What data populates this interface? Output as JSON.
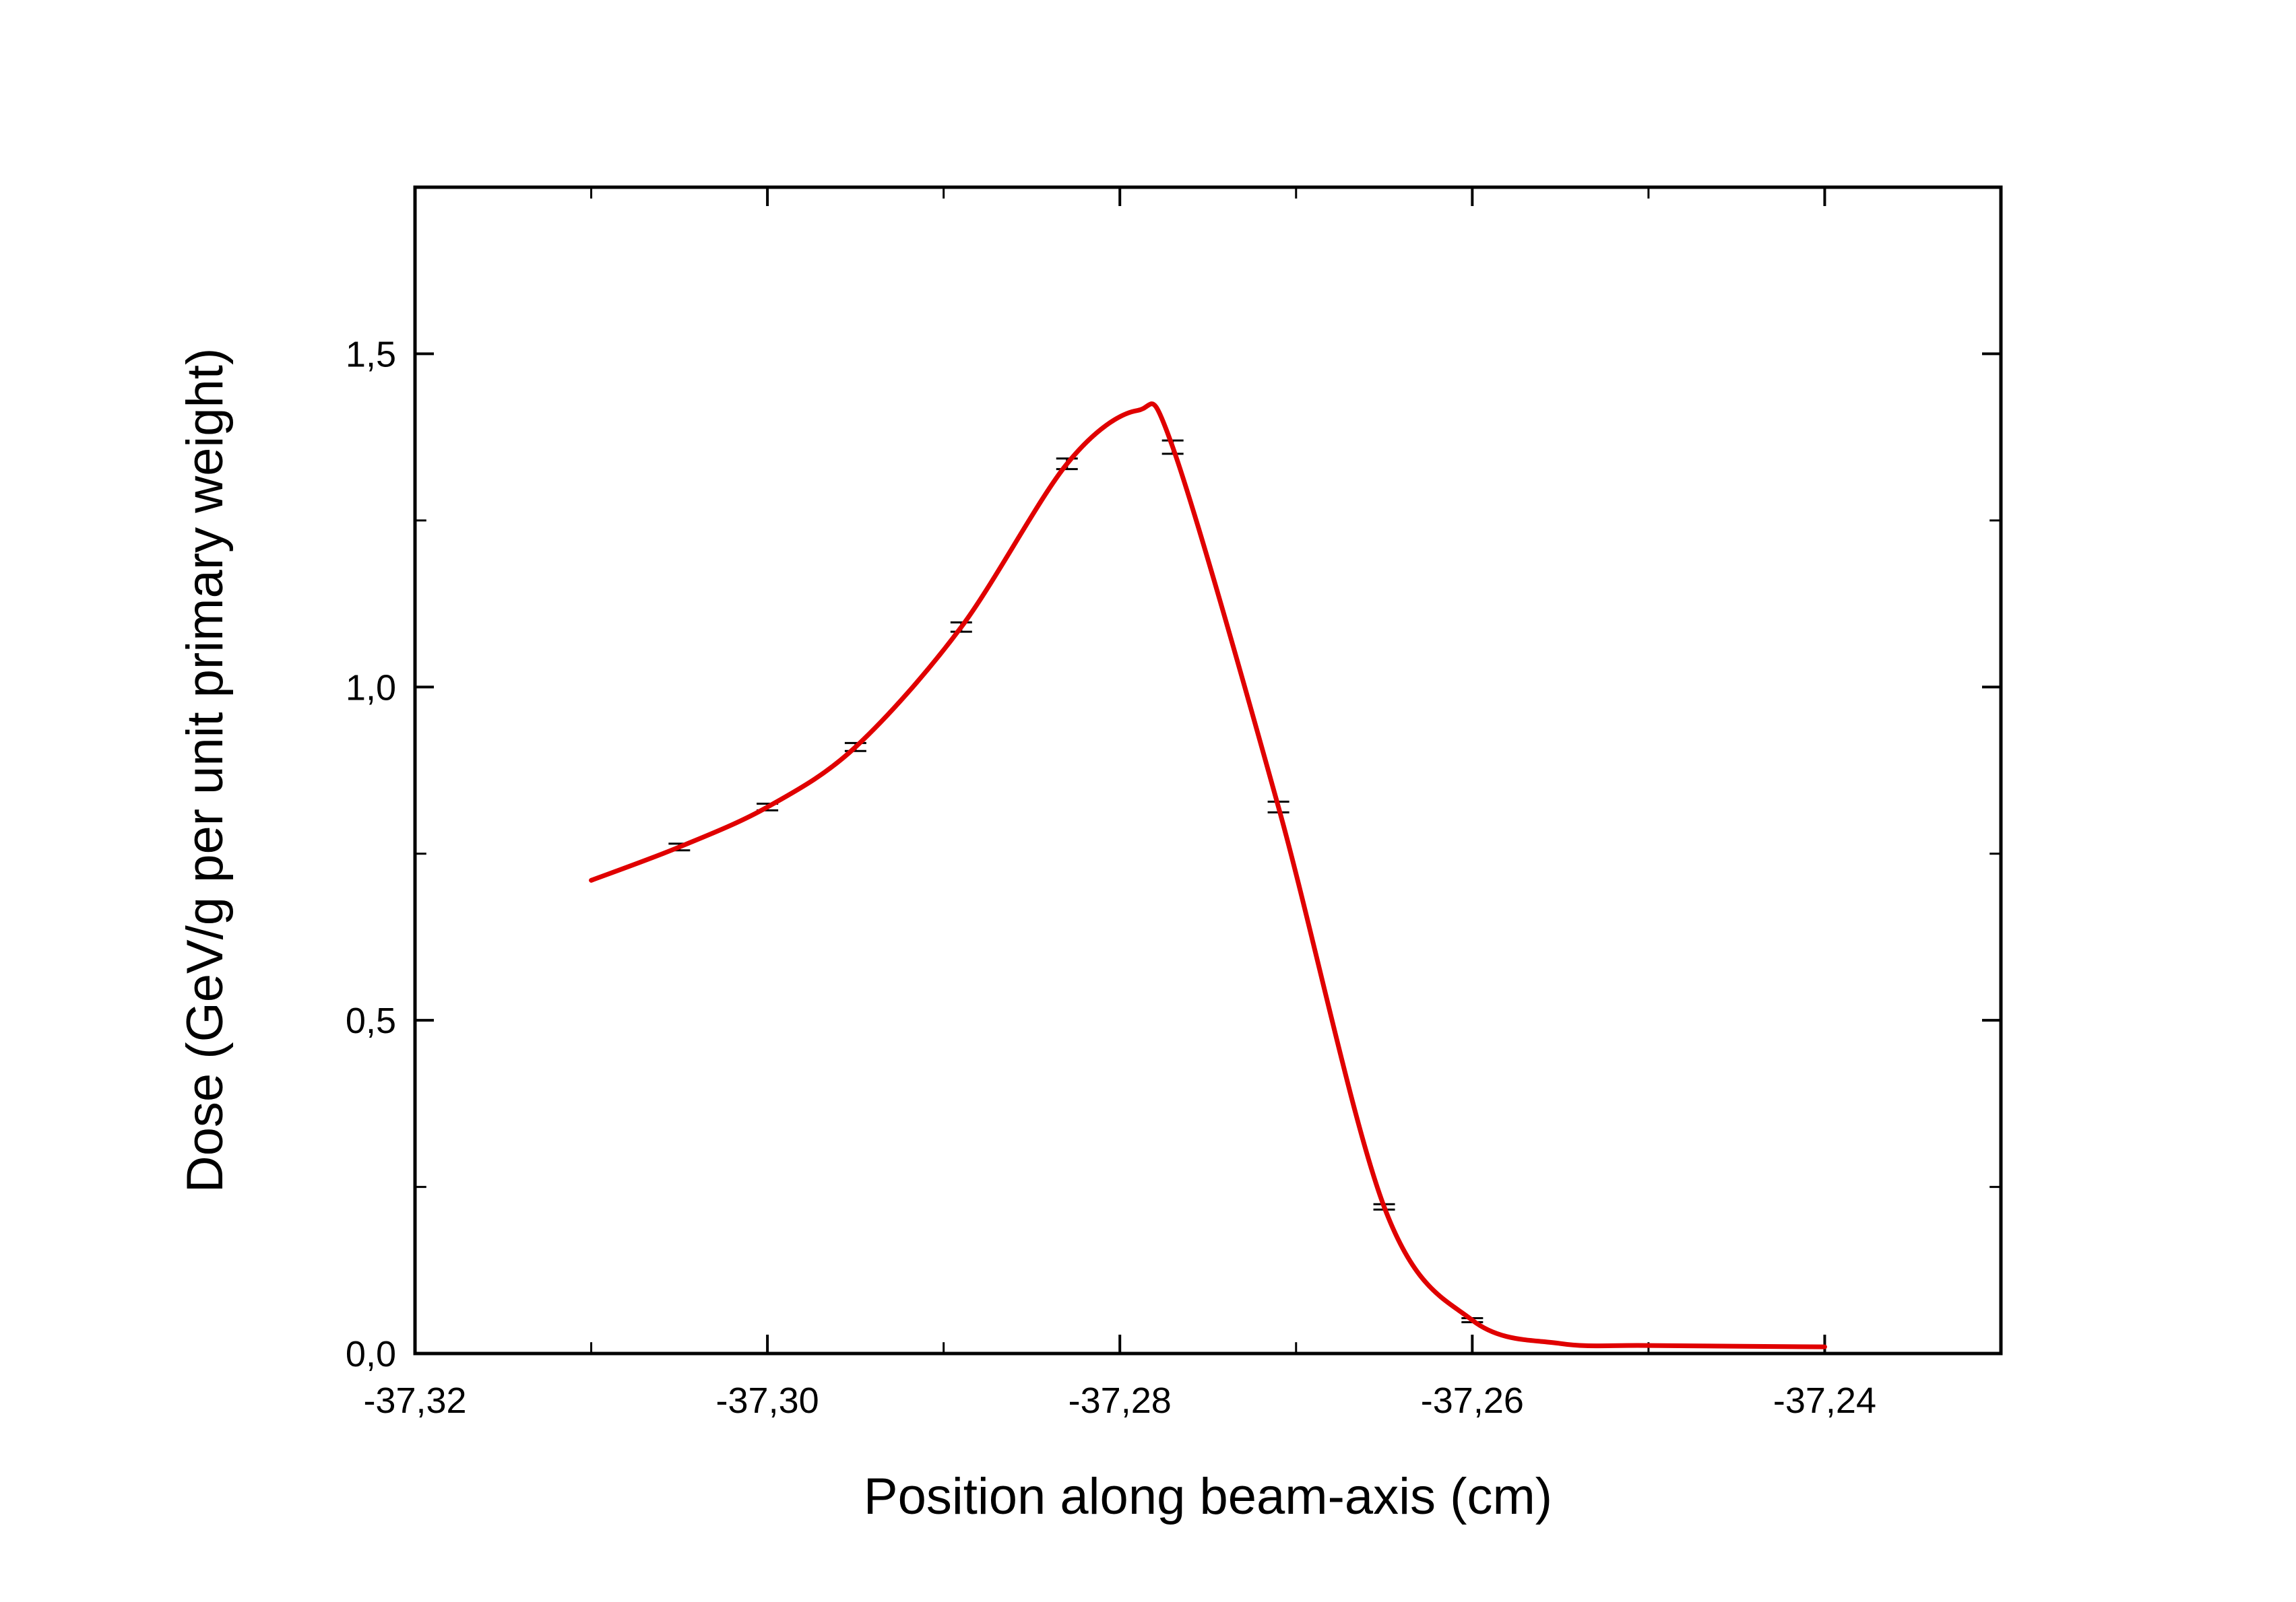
{
  "chart_data": {
    "type": "line",
    "xlabel": "Position along beam-axis (cm)",
    "ylabel": "Dose (GeV/g per unit primary weight)",
    "xlim": [
      -37.32,
      -37.23
    ],
    "ylim": [
      0.0,
      1.75
    ],
    "x_ticks": [
      {
        "value": -37.32,
        "label": "-37,32"
      },
      {
        "value": -37.3,
        "label": "-37,30"
      },
      {
        "value": -37.28,
        "label": "-37,28"
      },
      {
        "value": -37.26,
        "label": "-37,26"
      },
      {
        "value": -37.24,
        "label": "-37,24"
      }
    ],
    "y_ticks": [
      {
        "value": 0.0,
        "label": "0,0"
      },
      {
        "value": 0.5,
        "label": "0,5"
      },
      {
        "value": 1.0,
        "label": "1,0"
      },
      {
        "value": 1.5,
        "label": "1,5"
      }
    ],
    "grid": false,
    "series": [
      {
        "color": "#000000",
        "points": [
          {
            "x": -37.31,
            "y": 0.71,
            "err": 0
          },
          {
            "x": -37.305,
            "y": 0.76,
            "err": 0.005
          },
          {
            "x": -37.3,
            "y": 0.82,
            "err": 0.005
          },
          {
            "x": -37.295,
            "y": 0.91,
            "err": 0.006
          },
          {
            "x": -37.289,
            "y": 1.09,
            "err": 0.007
          },
          {
            "x": -37.283,
            "y": 1.335,
            "err": 0.008
          },
          {
            "x": -37.279,
            "y": 1.415,
            "err": 0
          },
          {
            "x": -37.277,
            "y": 1.36,
            "err": 0.01
          },
          {
            "x": -37.271,
            "y": 0.82,
            "err": 0.008
          },
          {
            "x": -37.265,
            "y": 0.22,
            "err": 0.004
          },
          {
            "x": -37.26,
            "y": 0.05,
            "err": 0.003
          },
          {
            "x": -37.255,
            "y": 0.015,
            "err": 0
          },
          {
            "x": -37.25,
            "y": 0.012,
            "err": 0
          },
          {
            "x": -37.24,
            "y": 0.01,
            "err": 0
          }
        ]
      },
      {
        "color": "#e00000",
        "points": [
          {
            "x": -37.31,
            "y": 0.71
          },
          {
            "x": -37.305,
            "y": 0.76
          },
          {
            "x": -37.3,
            "y": 0.82
          },
          {
            "x": -37.295,
            "y": 0.91
          },
          {
            "x": -37.289,
            "y": 1.09
          },
          {
            "x": -37.283,
            "y": 1.335
          },
          {
            "x": -37.279,
            "y": 1.415
          },
          {
            "x": -37.277,
            "y": 1.36
          },
          {
            "x": -37.271,
            "y": 0.82
          },
          {
            "x": -37.265,
            "y": 0.22
          },
          {
            "x": -37.26,
            "y": 0.05
          },
          {
            "x": -37.255,
            "y": 0.015
          },
          {
            "x": -37.25,
            "y": 0.012
          },
          {
            "x": -37.24,
            "y": 0.01
          }
        ]
      }
    ]
  }
}
